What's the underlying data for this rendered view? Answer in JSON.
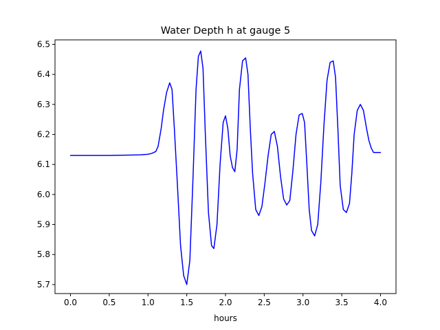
{
  "chart_data": {
    "type": "line",
    "title": "Water Depth h at gauge 5",
    "xlabel": "hours",
    "ylabel": "",
    "xlim": [
      -0.2,
      4.2
    ],
    "ylim": [
      5.67,
      6.515
    ],
    "xticks": [
      0.0,
      0.5,
      1.0,
      1.5,
      2.0,
      2.5,
      3.0,
      3.5,
      4.0
    ],
    "xtick_labels": [
      "0.0",
      "0.5",
      "1.0",
      "1.5",
      "2.0",
      "2.5",
      "3.0",
      "3.5",
      "4.0"
    ],
    "yticks": [
      5.7,
      5.8,
      5.9,
      6.0,
      6.1,
      6.2,
      6.3,
      6.4,
      6.5
    ],
    "ytick_labels": [
      "5.7",
      "5.8",
      "5.9",
      "6.0",
      "6.1",
      "6.2",
      "6.3",
      "6.4",
      "6.5"
    ],
    "grid": false,
    "series": [
      {
        "color": "#0000ff",
        "x": [
          0.0,
          0.5,
          0.9,
          1.0,
          1.05,
          1.1,
          1.13,
          1.17,
          1.2,
          1.24,
          1.28,
          1.31,
          1.34,
          1.38,
          1.42,
          1.46,
          1.5,
          1.54,
          1.58,
          1.62,
          1.65,
          1.68,
          1.71,
          1.74,
          1.78,
          1.82,
          1.85,
          1.89,
          1.93,
          1.97,
          2.0,
          2.03,
          2.06,
          2.09,
          2.12,
          2.15,
          2.18,
          2.22,
          2.26,
          2.29,
          2.32,
          2.35,
          2.39,
          2.43,
          2.47,
          2.51,
          2.55,
          2.59,
          2.63,
          2.67,
          2.71,
          2.75,
          2.79,
          2.83,
          2.87,
          2.91,
          2.95,
          2.99,
          3.02,
          3.05,
          3.08,
          3.11,
          3.15,
          3.19,
          3.23,
          3.27,
          3.31,
          3.35,
          3.39,
          3.42,
          3.45,
          3.48,
          3.52,
          3.56,
          3.6,
          3.63,
          3.66,
          3.7,
          3.74,
          3.78,
          3.82,
          3.85,
          3.88,
          3.91,
          3.94,
          3.97,
          4.0
        ],
        "y": [
          6.13,
          6.13,
          6.132,
          6.134,
          6.137,
          6.143,
          6.16,
          6.22,
          6.28,
          6.34,
          6.372,
          6.35,
          6.22,
          6.03,
          5.83,
          5.73,
          5.7,
          5.78,
          6.05,
          6.35,
          6.46,
          6.478,
          6.42,
          6.2,
          5.94,
          5.83,
          5.82,
          5.9,
          6.1,
          6.24,
          6.262,
          6.22,
          6.13,
          6.09,
          6.076,
          6.15,
          6.35,
          6.445,
          6.455,
          6.4,
          6.22,
          6.07,
          5.95,
          5.93,
          5.96,
          6.04,
          6.13,
          6.2,
          6.21,
          6.16,
          6.06,
          5.985,
          5.965,
          5.98,
          6.08,
          6.2,
          6.265,
          6.27,
          6.24,
          6.1,
          5.95,
          5.88,
          5.862,
          5.9,
          6.04,
          6.23,
          6.38,
          6.44,
          6.445,
          6.39,
          6.22,
          6.03,
          5.95,
          5.94,
          5.97,
          6.07,
          6.2,
          6.28,
          6.3,
          6.28,
          6.22,
          6.18,
          6.155,
          6.14,
          6.14,
          6.14,
          6.14
        ]
      }
    ]
  }
}
